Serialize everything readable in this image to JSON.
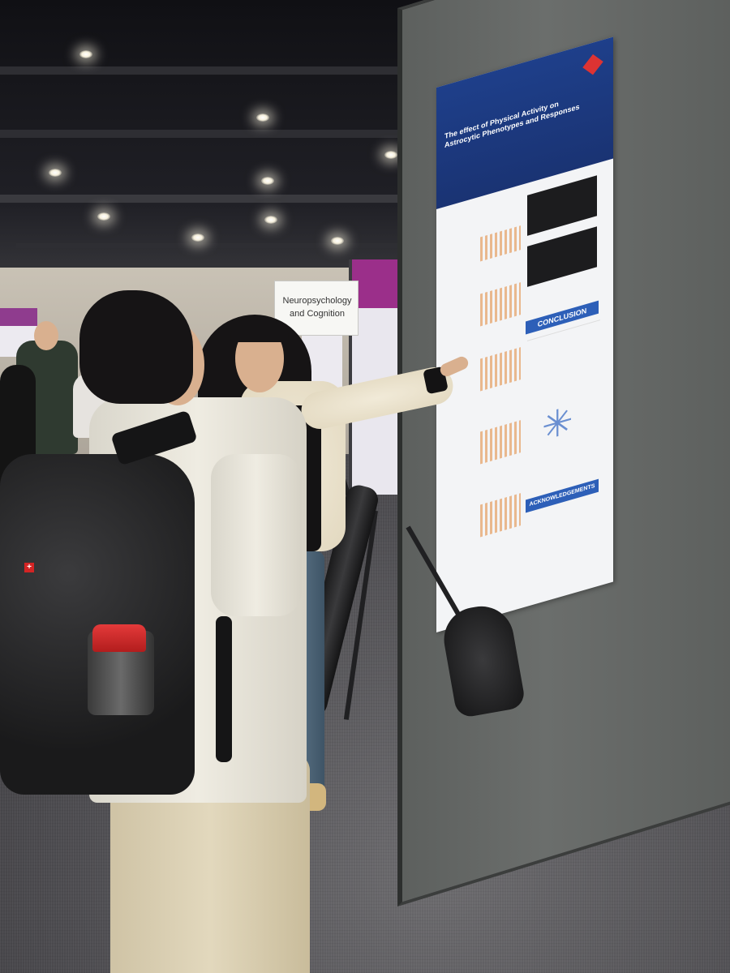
{
  "scene": {
    "description_alt": "Two attendees at a scientific poster session; one points at a poster",
    "sign": {
      "line1": "Neuropsychology",
      "line2": "and Cognition"
    },
    "poster": {
      "title": "The effect of Physical Activity on Astrocytic Phenotypes and Responses",
      "section_conclusion": "CONCLUSION",
      "section_acknowledgements": "ACKNOWLEDGEMENTS"
    }
  },
  "colors": {
    "poster_header": "#1a3373",
    "poster_accent": "#2d5fb8",
    "board_gray": "#5d605e",
    "floor_gray": "#4e4d51",
    "side_band_purple": "#9b2f8a",
    "bottle_cap_red": "#d32424"
  }
}
